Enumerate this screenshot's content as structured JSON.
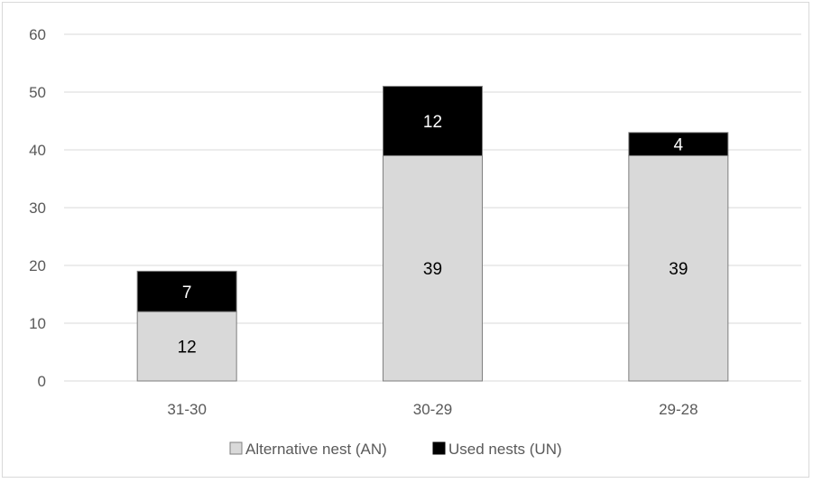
{
  "chart_data": {
    "type": "bar",
    "stacked": true,
    "categories": [
      "31-30",
      "30-29",
      "29-28"
    ],
    "series": [
      {
        "name": "Alternative nest (AN)",
        "values": [
          12,
          39,
          39
        ],
        "color": "#d9d9d9",
        "label_color": "#000000"
      },
      {
        "name": "Used nests (UN)",
        "values": [
          7,
          12,
          4
        ],
        "color": "#000000",
        "label_color": "#ffffff"
      }
    ],
    "ylim": [
      0,
      60
    ],
    "yticks": [
      0,
      10,
      20,
      30,
      40,
      50,
      60
    ],
    "grid": true,
    "legend": "bottom",
    "xlabel": "",
    "ylabel": ""
  }
}
